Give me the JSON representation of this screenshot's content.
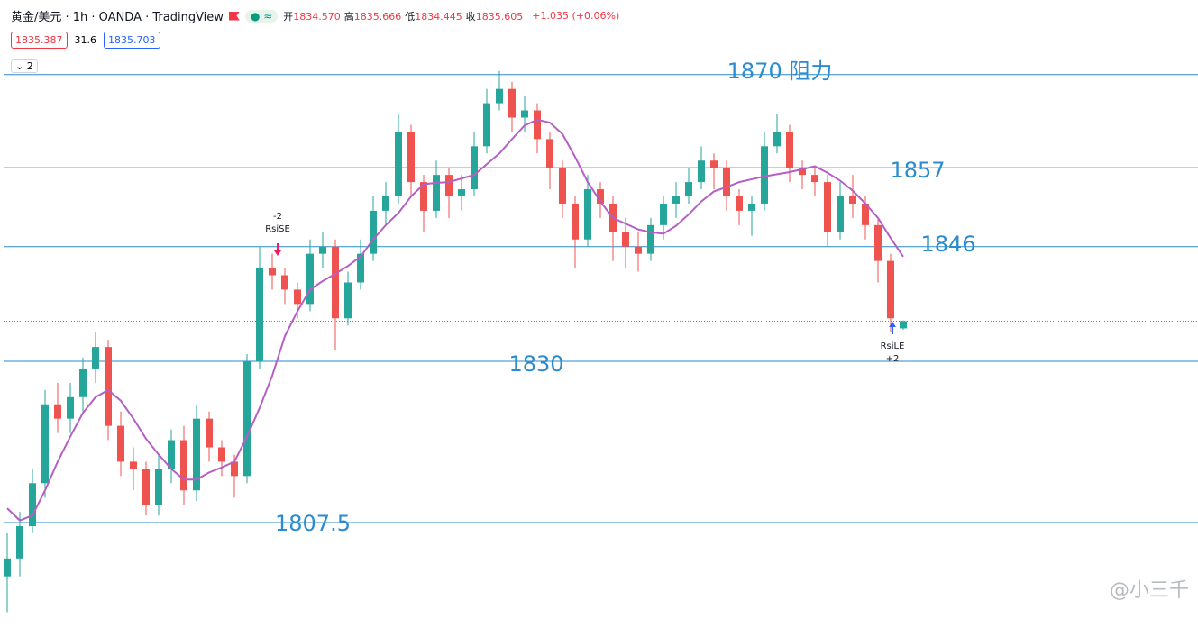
{
  "header": {
    "symbol": "黄金/美元 · 1h · OANDA · TradingView",
    "ohlc": [
      {
        "label": "开",
        "value": "1834.570"
      },
      {
        "label": "高",
        "value": "1835.666"
      },
      {
        "label": "低",
        "value": "1834.445"
      },
      {
        "label": "收",
        "value": "1835.605"
      }
    ],
    "change": "+1.035 (+0.06%)",
    "bid": "1835.387",
    "spread": "31.6",
    "ask": "1835.703",
    "collapse": "2"
  },
  "chart_data": {
    "type": "candlestick",
    "up_color": "#26a69a",
    "down_color": "#ef5350",
    "open": [
      1800,
      1802.5,
      1807,
      1813,
      1824,
      1822,
      1825,
      1829,
      1832,
      1821,
      1816,
      1815,
      1810,
      1815,
      1819,
      1812,
      1822,
      1818,
      1816,
      1814,
      1830,
      1843,
      1842,
      1840,
      1838,
      1845,
      1846,
      1836,
      1841,
      1845,
      1851,
      1853,
      1862,
      1855,
      1851,
      1856,
      1853,
      1854,
      1860,
      1866,
      1868,
      1864,
      1865,
      1861,
      1857,
      1852,
      1847,
      1854,
      1852,
      1848,
      1846,
      1845,
      1849,
      1852,
      1853,
      1855,
      1858,
      1857,
      1853,
      1851,
      1852,
      1860,
      1862,
      1857,
      1856,
      1855,
      1848,
      1853,
      1852,
      1849,
      1844,
      1834.6
    ],
    "high": [
      1806,
      1809,
      1815,
      1826,
      1827,
      1827,
      1830.5,
      1834,
      1833,
      1823,
      1818,
      1816,
      1817,
      1820.5,
      1821,
      1824,
      1823,
      1819,
      1817,
      1831,
      1846,
      1845,
      1843,
      1841,
      1847,
      1848,
      1847,
      1842.5,
      1847,
      1853,
      1855,
      1864.5,
      1863,
      1856,
      1858,
      1857,
      1856,
      1862,
      1868,
      1870.5,
      1869,
      1867,
      1866,
      1862,
      1858,
      1853,
      1856,
      1855,
      1853,
      1850,
      1848,
      1850,
      1853,
      1855,
      1857,
      1860,
      1859,
      1858,
      1854,
      1853,
      1862,
      1864.5,
      1863,
      1858,
      1857,
      1856,
      1855,
      1856,
      1853,
      1850,
      1845,
      1835.7
    ],
    "low": [
      1795,
      1800,
      1806,
      1811,
      1820,
      1820,
      1823,
      1827,
      1819,
      1814,
      1812,
      1808.5,
      1808.5,
      1813,
      1810,
      1810.5,
      1816,
      1814,
      1811,
      1813,
      1829,
      1840,
      1838,
      1836,
      1837,
      1843,
      1831.5,
      1835,
      1840,
      1844,
      1849,
      1852,
      1853,
      1848,
      1850,
      1850,
      1851,
      1853,
      1859,
      1865,
      1862,
      1862,
      1859,
      1854,
      1850,
      1843,
      1846,
      1850,
      1844,
      1843,
      1842.5,
      1844,
      1847,
      1850,
      1852,
      1854,
      1854,
      1851,
      1849,
      1847.5,
      1851,
      1859,
      1855,
      1854,
      1853,
      1846,
      1847,
      1850,
      1847,
      1841,
      1834,
      1834.4
    ],
    "close": [
      1802.5,
      1807,
      1813,
      1824,
      1822,
      1825,
      1829,
      1832,
      1821,
      1816,
      1815,
      1810,
      1815,
      1819,
      1812,
      1822,
      1818,
      1816,
      1814,
      1830,
      1843,
      1842,
      1840,
      1838,
      1845,
      1846,
      1836,
      1841,
      1845,
      1851,
      1853,
      1862,
      1855,
      1851,
      1856,
      1853,
      1854,
      1860,
      1866,
      1868,
      1864,
      1865,
      1861,
      1857,
      1852,
      1847,
      1854,
      1852,
      1848,
      1846,
      1845,
      1849,
      1852,
      1853,
      1855,
      1858,
      1857,
      1853,
      1851,
      1852,
      1860,
      1862,
      1857,
      1856,
      1855,
      1848,
      1853,
      1852,
      1849,
      1844,
      1836,
      1835.6
    ],
    "ma": {
      "color": "#b55fc4",
      "values": [
        1809.5,
        1807.8,
        1808.5,
        1812,
        1816,
        1819.5,
        1822.8,
        1825,
        1826,
        1824.5,
        1822,
        1819.2,
        1817,
        1815,
        1813.5,
        1813.5,
        1814.5,
        1815.2,
        1816,
        1819.5,
        1823.5,
        1828,
        1833.5,
        1837,
        1840,
        1841.2,
        1842.2,
        1843.3,
        1844.6,
        1847,
        1849,
        1850.7,
        1853,
        1854.7,
        1854.9,
        1855,
        1855.5,
        1856,
        1857.5,
        1859,
        1861,
        1862.9,
        1863.7,
        1863.3,
        1861.7,
        1858.5,
        1855,
        1852.3,
        1850,
        1849.2,
        1848.4,
        1848,
        1847.8,
        1848.9,
        1850.5,
        1852.3,
        1853.7,
        1854.3,
        1855,
        1855.4,
        1855.8,
        1856.1,
        1856.4,
        1856.8,
        1857.2,
        1856.3,
        1855.2,
        1853.8,
        1852,
        1850,
        1847.2,
        1844.6
      ]
    },
    "ylim": [
      1792.8,
      1880.4
    ],
    "levels": [
      {
        "value": 1870,
        "label": "1870 阻力"
      },
      1857,
      1846,
      1830,
      1807.5
    ],
    "level_color": "#2a8bd0",
    "annotations": [
      {
        "lines": [
          "-2",
          "RsiSE"
        ],
        "color": "#e91e63"
      },
      {
        "lines": [
          "RsiLE",
          "+2"
        ],
        "color": "#2962ff"
      }
    ]
  },
  "watermark": "@小三千"
}
